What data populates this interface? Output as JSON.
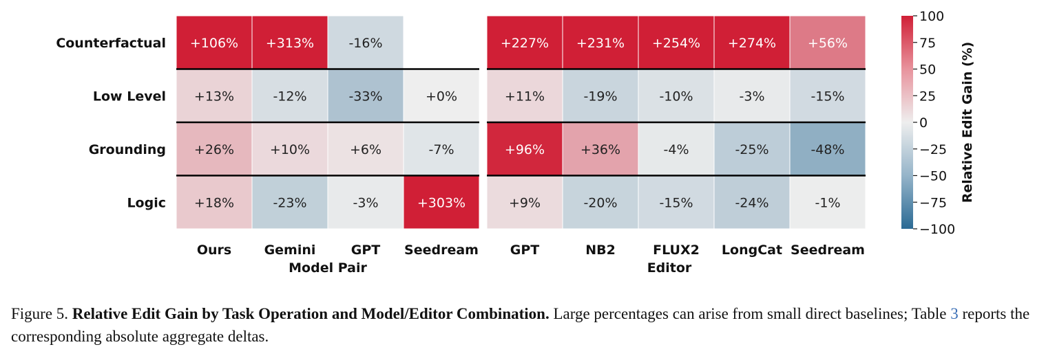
{
  "chart_data": {
    "type": "heatmap",
    "rows": [
      "Counterfactual",
      "Low Level",
      "Grounding",
      "Logic"
    ],
    "panels": [
      {
        "columns": [
          "Ours",
          "Gemini",
          "GPT",
          "Seedream"
        ],
        "xlabel": "Model Pair",
        "values": [
          [
            106,
            313,
            -16,
            null
          ],
          [
            13,
            -12,
            -33,
            0
          ],
          [
            26,
            10,
            6,
            -7
          ],
          [
            18,
            -23,
            -3,
            303
          ]
        ],
        "labels": [
          [
            "+106%",
            "+313%",
            "-16%",
            ""
          ],
          [
            "+13%",
            "-12%",
            "-33%",
            "+0%"
          ],
          [
            "+26%",
            "+10%",
            "+6%",
            "-7%"
          ],
          [
            "+18%",
            "-23%",
            "-3%",
            "+303%"
          ]
        ]
      },
      {
        "columns": [
          "GPT",
          "NB2",
          "FLUX2",
          "LongCat",
          "Seedream"
        ],
        "xlabel": "Editor",
        "values": [
          [
            227,
            231,
            254,
            274,
            56
          ],
          [
            11,
            -19,
            -10,
            -3,
            -15
          ],
          [
            96,
            36,
            -4,
            -25,
            -48
          ],
          [
            9,
            -20,
            -15,
            -24,
            -1
          ]
        ],
        "labels": [
          [
            "+227%",
            "+231%",
            "+254%",
            "+274%",
            "+56%"
          ],
          [
            "+11%",
            "-19%",
            "-10%",
            "-3%",
            "-15%"
          ],
          [
            "+96%",
            "+36%",
            "-4%",
            "-25%",
            "-48%"
          ],
          [
            "+9%",
            "-20%",
            "-15%",
            "-24%",
            "-1%"
          ]
        ]
      }
    ],
    "colorbar": {
      "label": "Relative Edit Gain (%)",
      "range": [
        -100,
        100
      ],
      "ticks": [
        100,
        75,
        50,
        25,
        0,
        -25,
        -50,
        -75,
        -100
      ],
      "tick_labels": [
        "100",
        "75",
        "50",
        "25",
        "0",
        "−25",
        "−50",
        "−75",
        "−100"
      ],
      "colors": {
        "negative": "#2b6a94",
        "neutral": "#eeeeee",
        "positive": "#d01f36"
      }
    }
  },
  "caption": {
    "prefix": "Figure 5. ",
    "title": "Relative Edit Gain by Task Operation and Model/Editor Combination.",
    "text1": " Large percentages can arise from small direct baselines; Table ",
    "ref": "3",
    "text2": " reports the corresponding absolute aggregate deltas."
  }
}
